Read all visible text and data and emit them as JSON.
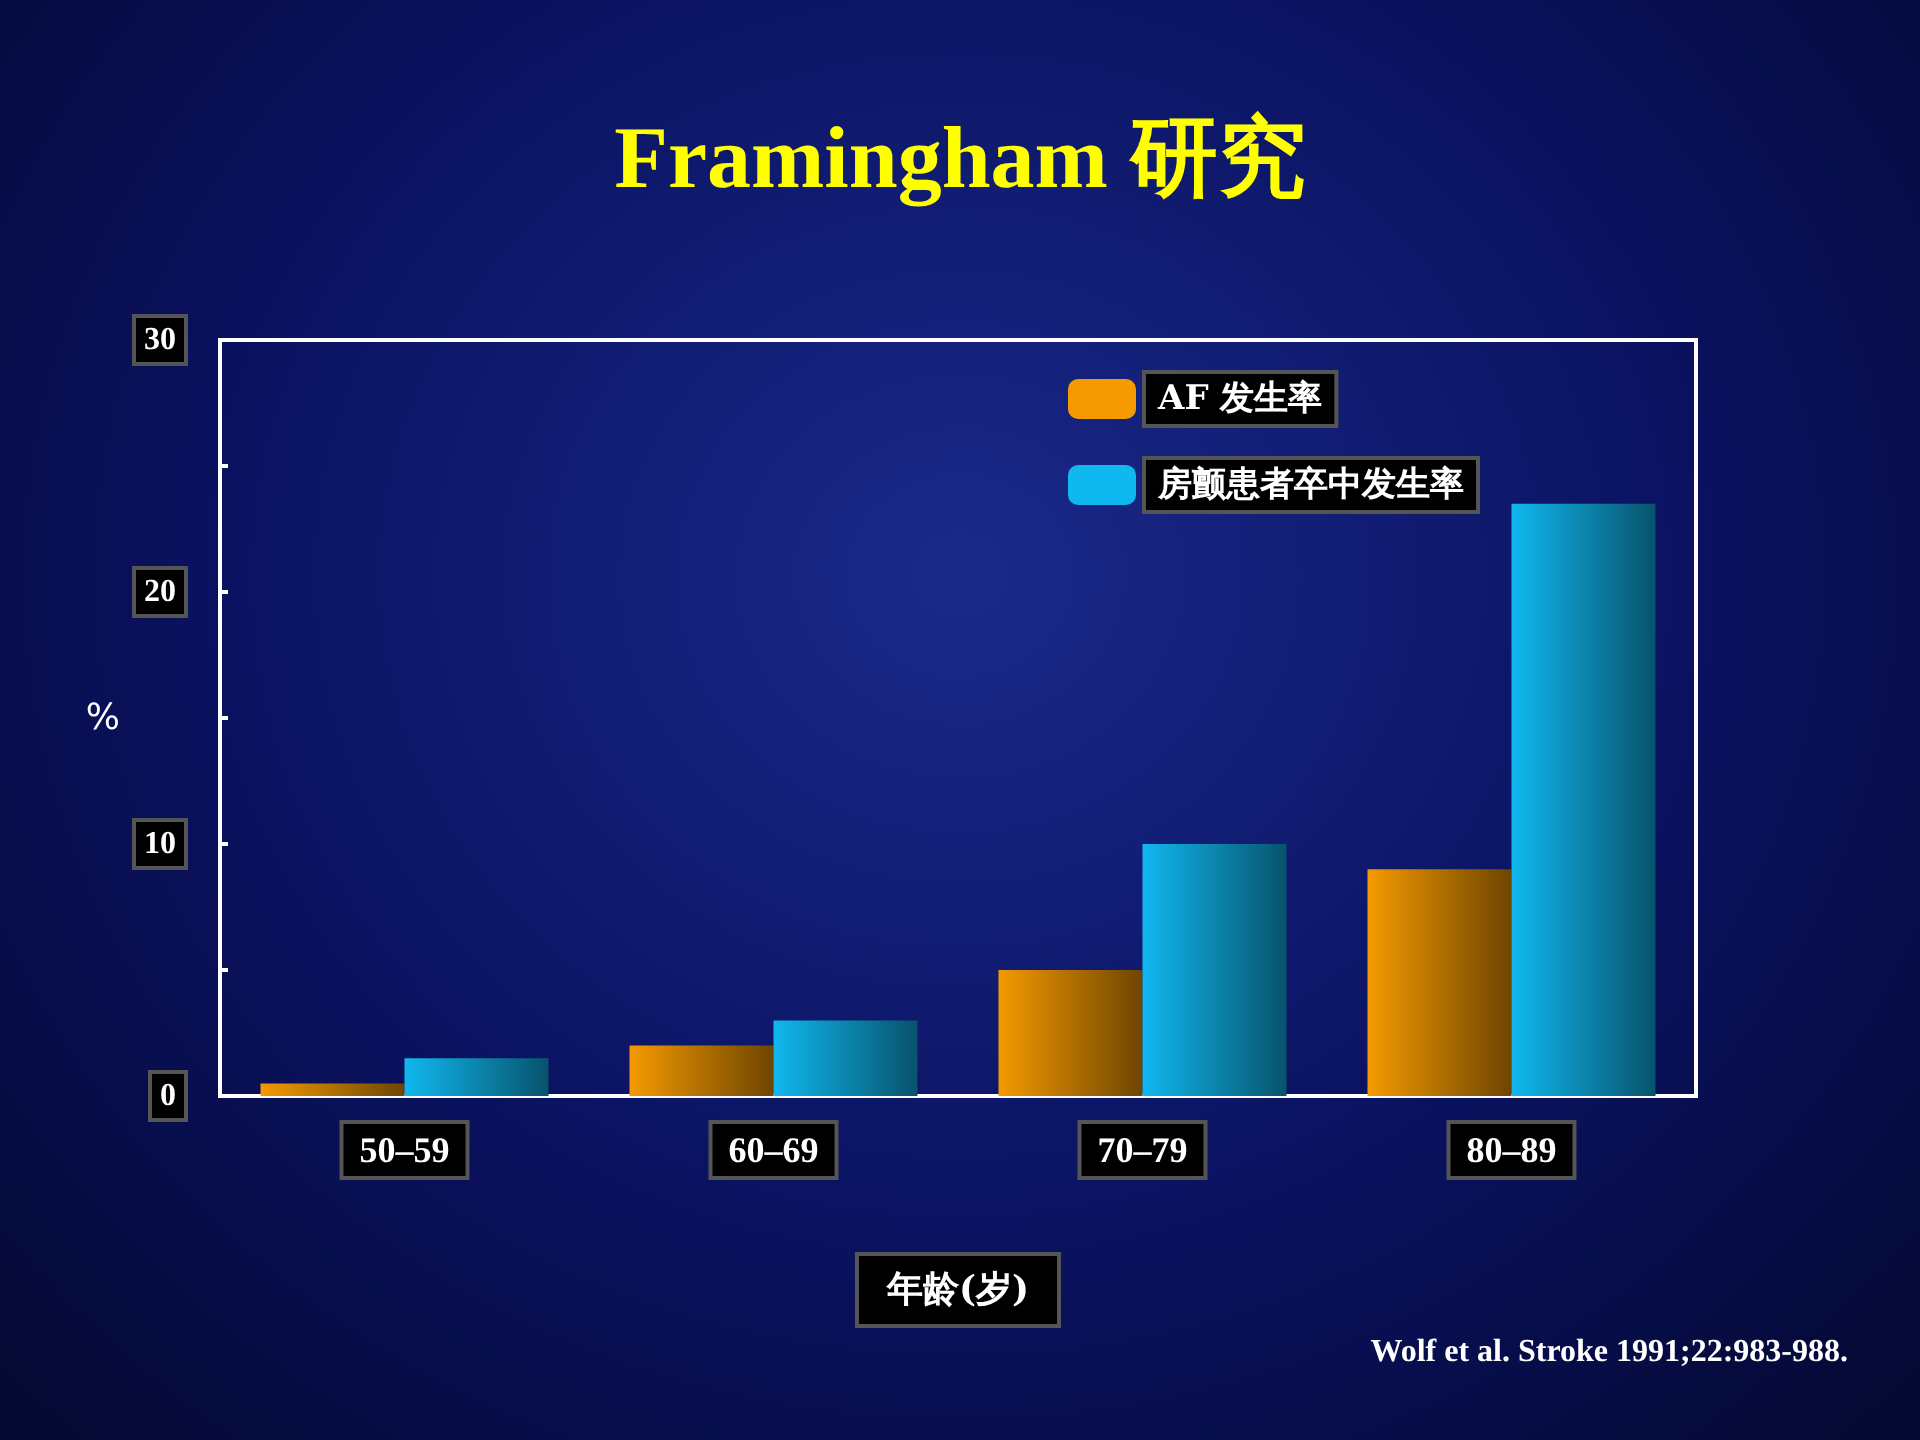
{
  "chart_data": {
    "type": "bar",
    "title": "Framingham 研究",
    "xlabel": "年龄(岁)",
    "ylabel": "%",
    "categories": [
      "50–59",
      "60–69",
      "70–79",
      "80–89"
    ],
    "series": [
      {
        "name": "AF 发生率",
        "color": "#f59a00",
        "values": [
          0.5,
          2,
          5,
          9
        ]
      },
      {
        "name": "房颤患者卒中发生率",
        "color": "#10b8f0",
        "values": [
          1.5,
          3,
          10,
          23.5
        ]
      }
    ],
    "ylim": [
      0,
      30
    ],
    "yticks": [
      0,
      {
        "value": 5,
        "label": null
      },
      10,
      {
        "value": 15,
        "label": null
      },
      20,
      {
        "value": 25,
        "label": null
      },
      30
    ],
    "grid": false,
    "legend": "top right",
    "annotations": [
      "Wolf et al. Stroke 1991;22:983-988."
    ]
  }
}
